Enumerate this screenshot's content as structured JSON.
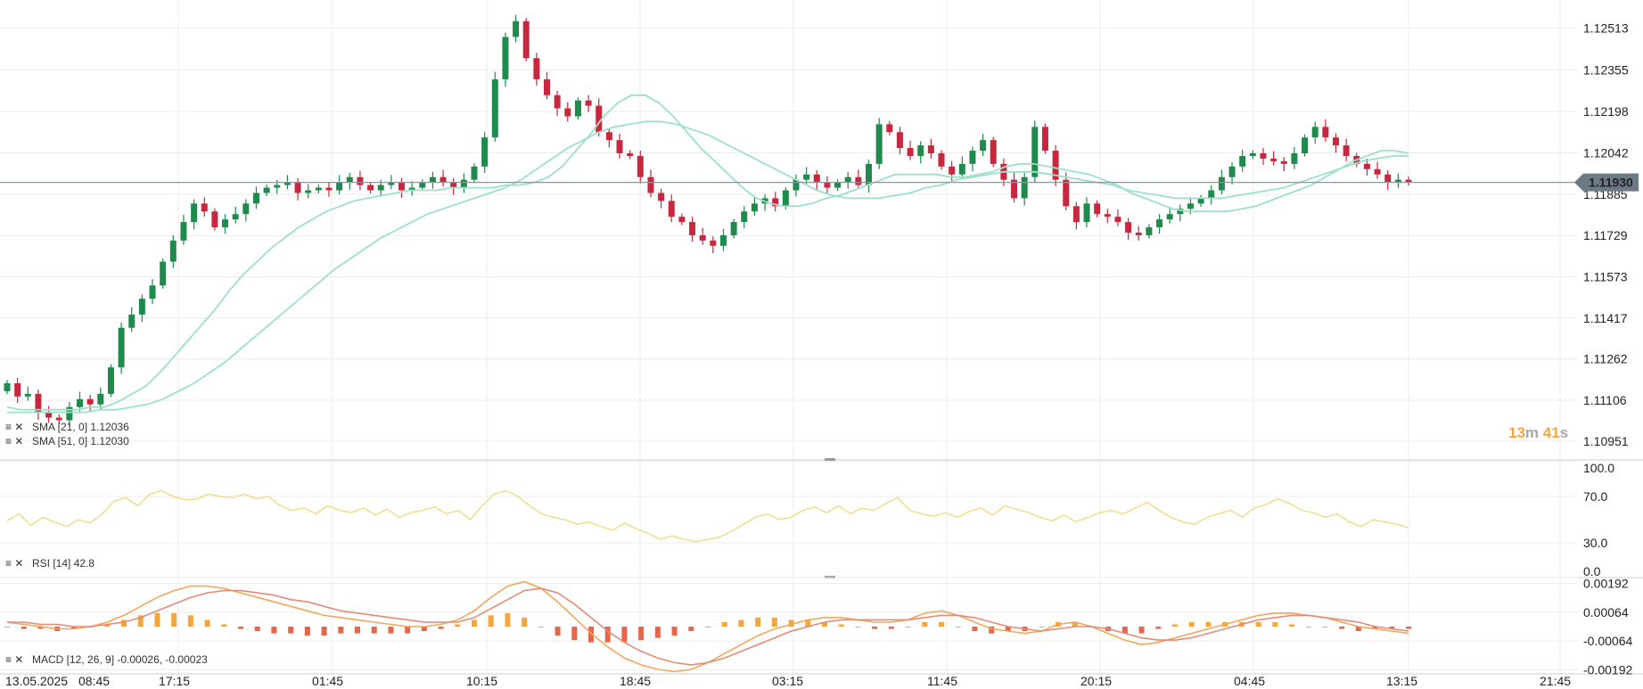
{
  "colors": {
    "background": "#ffffff",
    "grid": "#ececec",
    "separator": "#cccccc",
    "up_candle": "#1e8a4c",
    "down_candle": "#c8283e",
    "sma_line": "#9de0c8",
    "rsi_line": "#f2dc8a",
    "macd_line": "#f2a65a",
    "signal_line": "#e48a78",
    "hist_pos": "#f4a63c",
    "hist_neg": "#e8654a",
    "price_tag": "#6b7a86",
    "countdown": "#f4a63c"
  },
  "countdown": {
    "minutes": "13",
    "minutes_unit": "m",
    "seconds": "41",
    "seconds_unit": "s"
  },
  "chart_data": [
    {
      "type": "candlestick",
      "title": "",
      "last_price": "1.11930",
      "y_ticks": [
        "1.12513",
        "1.12355",
        "1.12198",
        "1.12042",
        "1.11885",
        "1.11729",
        "1.11573",
        "1.11417",
        "1.11262",
        "1.11106",
        "1.10951"
      ],
      "ylim": [
        1.1088,
        1.1262
      ],
      "x_ticks": [
        "13.05.2025",
        "08:45",
        "17:15",
        "01:45",
        "10:15",
        "18:45",
        "03:15",
        "11:45",
        "20:15",
        "04:45",
        "13:15",
        "21:45"
      ],
      "legend": [
        "SMA [21, 0] 1.12036",
        "SMA [51, 0] 1.12030"
      ],
      "close": [
        1.1117,
        1.1112,
        1.1113,
        1.1106,
        1.1104,
        1.1103,
        1.1108,
        1.1111,
        1.1109,
        1.1113,
        1.1123,
        1.1138,
        1.1143,
        1.1149,
        1.1154,
        1.1163,
        1.1171,
        1.1178,
        1.1185,
        1.1182,
        1.1176,
        1.1179,
        1.1181,
        1.1185,
        1.1189,
        1.1191,
        1.1192,
        1.1193,
        1.1189,
        1.119,
        1.1191,
        1.119,
        1.1193,
        1.1195,
        1.1192,
        1.119,
        1.1192,
        1.1193,
        1.119,
        1.1191,
        1.1193,
        1.1195,
        1.1193,
        1.1191,
        1.1194,
        1.1199,
        1.121,
        1.1232,
        1.1248,
        1.1254,
        1.124,
        1.1232,
        1.1226,
        1.1221,
        1.1218,
        1.1224,
        1.1222,
        1.1212,
        1.1209,
        1.1204,
        1.1203,
        1.1195,
        1.1189,
        1.1186,
        1.118,
        1.1178,
        1.1173,
        1.1171,
        1.1169,
        1.1173,
        1.1178,
        1.1182,
        1.1185,
        1.1187,
        1.1184,
        1.119,
        1.1194,
        1.1196,
        1.1193,
        1.1191,
        1.1193,
        1.1195,
        1.1192,
        1.12,
        1.1215,
        1.1212,
        1.1206,
        1.1203,
        1.1207,
        1.1204,
        1.1199,
        1.1196,
        1.12,
        1.1205,
        1.1209,
        1.12,
        1.1194,
        1.1187,
        1.1195,
        1.1214,
        1.1205,
        1.1194,
        1.1184,
        1.1178,
        1.1185,
        1.1181,
        1.118,
        1.1178,
        1.1174,
        1.1173,
        1.1176,
        1.1179,
        1.1181,
        1.1183,
        1.1185,
        1.1187,
        1.119,
        1.1195,
        1.1199,
        1.1203,
        1.1204,
        1.1202,
        1.1201,
        1.12,
        1.1204,
        1.121,
        1.1214,
        1.121,
        1.1207,
        1.1203,
        1.12,
        1.1198,
        1.1196,
        1.1193,
        1.1194,
        1.1193
      ],
      "series": [
        {
          "name": "SMA [21, 0] 1.12036",
          "values": [
            1.1108,
            1.1107,
            1.1107,
            1.1107,
            1.1107,
            1.1107,
            1.1108,
            1.1108,
            1.111,
            1.1113,
            1.1116,
            1.1121,
            1.1127,
            1.1133,
            1.1139,
            1.1145,
            1.1152,
            1.1158,
            1.1163,
            1.1168,
            1.1172,
            1.1176,
            1.1179,
            1.1182,
            1.1184,
            1.1186,
            1.1187,
            1.1188,
            1.1189,
            1.119,
            1.119,
            1.119,
            1.1191,
            1.1191,
            1.1191,
            1.1191,
            1.1192,
            1.1192,
            1.1193,
            1.1195,
            1.1199,
            1.1205,
            1.1211,
            1.1218,
            1.1223,
            1.1226,
            1.1226,
            1.1223,
            1.1218,
            1.1212,
            1.1206,
            1.1201,
            1.1196,
            1.1191,
            1.1187,
            1.1185,
            1.1184,
            1.1184,
            1.1185,
            1.1187,
            1.1188,
            1.119,
            1.1192,
            1.1194,
            1.1196,
            1.1196,
            1.1196,
            1.1196,
            1.1195,
            1.1195,
            1.1196,
            1.1197,
            1.1199,
            1.12,
            1.12,
            1.1199,
            1.1198,
            1.1197,
            1.1196,
            1.1194,
            1.1192,
            1.1189,
            1.1187,
            1.1185,
            1.1183,
            1.1182,
            1.1182,
            1.1182,
            1.1182,
            1.1183,
            1.1184,
            1.1186,
            1.1188,
            1.119,
            1.1192,
            1.1195,
            1.1198,
            1.1201,
            1.1203,
            1.1205,
            1.1205,
            1.1204
          ]
        },
        {
          "name": "SMA [51, 0] 1.12030",
          "values": [
            1.1106,
            1.1106,
            1.1106,
            1.1106,
            1.1106,
            1.1106,
            1.1107,
            1.1107,
            1.1108,
            1.1109,
            1.1111,
            1.1114,
            1.1117,
            1.1121,
            1.1125,
            1.113,
            1.1135,
            1.114,
            1.1145,
            1.115,
            1.1155,
            1.116,
            1.1164,
            1.1168,
            1.1172,
            1.1175,
            1.1178,
            1.1181,
            1.1183,
            1.1185,
            1.1187,
            1.1189,
            1.1191,
            1.1194,
            1.1198,
            1.1202,
            1.1206,
            1.1209,
            1.1212,
            1.1214,
            1.1215,
            1.1216,
            1.1216,
            1.1215,
            1.1213,
            1.1211,
            1.1208,
            1.1205,
            1.1202,
            1.1199,
            1.1196,
            1.1193,
            1.119,
            1.1188,
            1.1187,
            1.1187,
            1.1187,
            1.1188,
            1.1189,
            1.1191,
            1.1192,
            1.1194,
            1.1195,
            1.1196,
            1.1197,
            1.1197,
            1.1197,
            1.1196,
            1.1195,
            1.1194,
            1.1193,
            1.1192,
            1.119,
            1.1189,
            1.1188,
            1.1187,
            1.1187,
            1.1187,
            1.1187,
            1.1188,
            1.1189,
            1.119,
            1.1191,
            1.1193,
            1.1195,
            1.1197,
            1.1199,
            1.1201,
            1.1202,
            1.1203,
            1.1203
          ]
        }
      ]
    },
    {
      "type": "line",
      "title": "",
      "legend": [
        "RSI [14] 42.8"
      ],
      "y_ticks": [
        "100.0",
        "70.0",
        "30.0",
        "0.0"
      ],
      "ylim": [
        0,
        100
      ],
      "series": [
        {
          "name": "RSI [14] 42.8",
          "values": [
            49,
            55,
            45,
            52,
            48,
            44,
            50,
            47,
            55,
            66,
            69,
            62,
            72,
            75,
            70,
            67,
            68,
            72,
            70,
            69,
            72,
            68,
            70,
            62,
            58,
            60,
            55,
            62,
            58,
            56,
            60,
            54,
            59,
            52,
            56,
            58,
            61,
            55,
            58,
            50,
            62,
            72,
            75,
            70,
            62,
            55,
            52,
            50,
            46,
            48,
            44,
            41,
            47,
            42,
            38,
            33,
            36,
            33,
            31,
            33,
            35,
            40,
            46,
            52,
            55,
            50,
            52,
            58,
            61,
            56,
            62,
            55,
            60,
            58,
            64,
            69,
            58,
            55,
            53,
            56,
            52,
            57,
            60,
            54,
            62,
            59,
            56,
            52,
            49,
            54,
            48,
            52,
            56,
            58,
            55,
            60,
            65,
            58,
            52,
            48,
            46,
            52,
            55,
            58,
            52,
            60,
            63,
            68,
            64,
            58,
            56,
            52,
            55,
            48,
            44,
            50,
            48,
            46,
            43
          ]
        }
      ]
    },
    {
      "type": "bar",
      "title": "",
      "legend": [
        "MACD [12, 26, 9] -0.00026, -0.00023"
      ],
      "y_ticks": [
        "0.00192",
        "0.00064",
        "-0.00064",
        "-0.00192"
      ],
      "ylim": [
        -0.0021,
        0.0021
      ],
      "series": [
        {
          "name": "MACD",
          "values": [
            0.0002,
            0.0001,
            0.0,
            -0.0001,
            -0.0001,
            0.0,
            0.0002,
            0.0005,
            0.0009,
            0.0013,
            0.0016,
            0.0018,
            0.0018,
            0.0017,
            0.0015,
            0.0013,
            0.0011,
            0.0009,
            0.0007,
            0.0005,
            0.0004,
            0.0003,
            0.0002,
            0.0001,
            0.0,
            0.0,
            0.0001,
            0.0003,
            0.0007,
            0.0013,
            0.0018,
            0.002,
            0.0017,
            0.0011,
            0.0004,
            -0.0003,
            -0.0009,
            -0.0014,
            -0.0017,
            -0.0019,
            -0.002,
            -0.0019,
            -0.0016,
            -0.0012,
            -0.0008,
            -0.0004,
            -0.0001,
            0.0001,
            0.0003,
            0.0004,
            0.0004,
            0.0003,
            0.0002,
            0.0002,
            0.0003,
            0.0006,
            0.0007,
            0.0005,
            0.0002,
            -0.0001,
            -0.0002,
            -0.0003,
            -0.0002,
            0.0001,
            0.0002,
            0.0,
            -0.0003,
            -0.0006,
            -0.0008,
            -0.0007,
            -0.0005,
            -0.0003,
            -0.0001,
            0.0001,
            0.0003,
            0.0005,
            0.0006,
            0.0006,
            0.0005,
            0.0004,
            0.0002,
            0.0,
            -0.0001,
            -0.0002,
            -0.0003
          ]
        },
        {
          "name": "Signal",
          "values": [
            0.0002,
            0.0002,
            0.0001,
            0.0001,
            0.0,
            0.0,
            0.0001,
            0.0002,
            0.0004,
            0.0007,
            0.001,
            0.0013,
            0.0015,
            0.0016,
            0.0016,
            0.0015,
            0.0014,
            0.0012,
            0.0011,
            0.0009,
            0.0007,
            0.0006,
            0.0005,
            0.0004,
            0.0003,
            0.0002,
            0.0002,
            0.0002,
            0.0004,
            0.0008,
            0.0012,
            0.0016,
            0.0017,
            0.0015,
            0.001,
            0.0004,
            -0.0002,
            -0.0007,
            -0.0011,
            -0.0014,
            -0.0016,
            -0.0017,
            -0.0016,
            -0.0014,
            -0.0011,
            -0.0008,
            -0.0005,
            -0.0002,
            0.0,
            0.0002,
            0.0003,
            0.0003,
            0.0003,
            0.0003,
            0.0003,
            0.0004,
            0.0005,
            0.0005,
            0.0004,
            0.0002,
            0.0,
            -0.0001,
            -0.0002,
            -0.0001,
            0.0,
            0.0,
            -0.0001,
            -0.0003,
            -0.0005,
            -0.0006,
            -0.0006,
            -0.0005,
            -0.0003,
            -0.0001,
            0.0001,
            0.0003,
            0.0004,
            0.0005,
            0.0005,
            0.0004,
            0.0003,
            0.0002,
            0.0,
            -0.0001,
            -0.0002
          ]
        }
      ]
    }
  ]
}
